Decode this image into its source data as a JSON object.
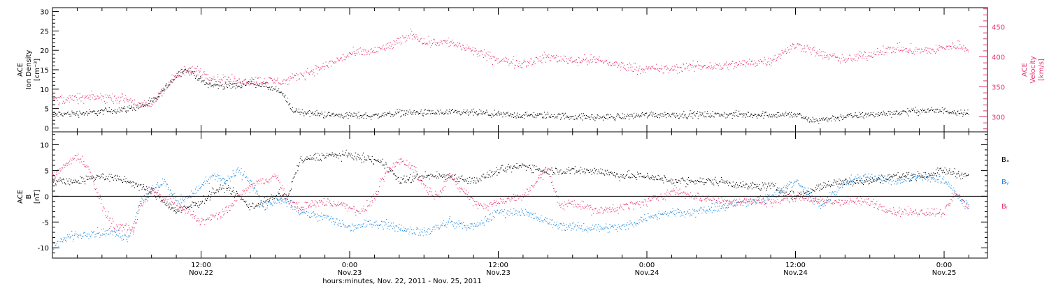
{
  "colors": {
    "ion_density": "#000000",
    "velocity": "#e8336d",
    "bx": "#000000",
    "by": "#1a86e0",
    "bz": "#e8336d"
  },
  "chart_data": [
    {
      "type": "scatter",
      "ylabel_lines": [
        "ACE",
        "Ion Density",
        "[cm⁻³]"
      ],
      "y2label_lines": [
        "ACE",
        "Velocity",
        "[km/s]"
      ],
      "ylim": [
        -1,
        31
      ],
      "y2lim": [
        275,
        482
      ],
      "yticks": [
        "0",
        "5",
        "10",
        "15",
        "20",
        "25",
        "30"
      ],
      "y2ticks": [
        "300",
        "350",
        "400",
        "450"
      ],
      "x_range_hours": [
        0,
        75.5
      ],
      "series": [
        {
          "color": "#000000",
          "axis": "left",
          "keypoints": [
            [
              0,
              3.5
            ],
            [
              3,
              4
            ],
            [
              6,
              5
            ],
            [
              7.5,
              6
            ],
            [
              8.5,
              8
            ],
            [
              9.5,
              12
            ],
            [
              10.5,
              15
            ],
            [
              11.5,
              14
            ],
            [
              12,
              12
            ],
            [
              13,
              11
            ],
            [
              14,
              11
            ],
            [
              15,
              11
            ],
            [
              16,
              12
            ],
            [
              17,
              11
            ],
            [
              18,
              10
            ],
            [
              18.8,
              8
            ],
            [
              19.2,
              5
            ],
            [
              19.6,
              4.5
            ],
            [
              20.5,
              4
            ],
            [
              22,
              3.5
            ],
            [
              24,
              3.3
            ],
            [
              26,
              3.2
            ],
            [
              28,
              4
            ],
            [
              30,
              4
            ],
            [
              32,
              4
            ],
            [
              34,
              4
            ],
            [
              36,
              3.5
            ],
            [
              38,
              3.3
            ],
            [
              40,
              3.3
            ],
            [
              42,
              3
            ],
            [
              44,
              2.8
            ],
            [
              46,
              3
            ],
            [
              48,
              3.5
            ],
            [
              50,
              3.5
            ],
            [
              52,
              3.5
            ],
            [
              54,
              3.5
            ],
            [
              56,
              3.5
            ],
            [
              58,
              3.5
            ],
            [
              60,
              3.5
            ],
            [
              60.5,
              3
            ],
            [
              61,
              2
            ],
            [
              62,
              2.2
            ],
            [
              64,
              3
            ],
            [
              66,
              3.5
            ],
            [
              68,
              4
            ],
            [
              70,
              4.5
            ],
            [
              72,
              4.5
            ],
            [
              74,
              4
            ]
          ],
          "noise": 1.3
        },
        {
          "color": "#e8336d",
          "axis": "right",
          "keypoints": [
            [
              0,
              330
            ],
            [
              1,
              330
            ],
            [
              3,
              333
            ],
            [
              5,
              332
            ],
            [
              6,
              330
            ],
            [
              7,
              320
            ],
            [
              8,
              320
            ],
            [
              8.5,
              335
            ],
            [
              9.5,
              360
            ],
            [
              10.5,
              375
            ],
            [
              11.5,
              380
            ],
            [
              12,
              375
            ],
            [
              13,
              365
            ],
            [
              15,
              360
            ],
            [
              17,
              360
            ],
            [
              18,
              360
            ],
            [
              19,
              360
            ],
            [
              20,
              370
            ],
            [
              22,
              385
            ],
            [
              24,
              405
            ],
            [
              26,
              410
            ],
            [
              28,
              425
            ],
            [
              29,
              440
            ],
            [
              30,
              425
            ],
            [
              32,
              425
            ],
            [
              34,
              410
            ],
            [
              36,
              395
            ],
            [
              38,
              390
            ],
            [
              40,
              400
            ],
            [
              42,
              395
            ],
            [
              44,
              395
            ],
            [
              46,
              385
            ],
            [
              48,
              380
            ],
            [
              50,
              380
            ],
            [
              52,
              385
            ],
            [
              54,
              385
            ],
            [
              56,
              390
            ],
            [
              58,
              395
            ],
            [
              60,
              420
            ],
            [
              61,
              415
            ],
            [
              62,
              405
            ],
            [
              64,
              395
            ],
            [
              66,
              405
            ],
            [
              68,
              415
            ],
            [
              70,
              410
            ],
            [
              72,
              415
            ],
            [
              73,
              420
            ],
            [
              74,
              415
            ]
          ],
          "noise": 12
        }
      ]
    },
    {
      "type": "scatter",
      "ylabel_lines": [
        "ACE",
        "B",
        "[nT]"
      ],
      "ylim": [
        -12,
        12.5
      ],
      "yticks": [
        "-10",
        "-5",
        "0",
        "5",
        "10"
      ],
      "legend": [
        "Bₓ",
        "Bᵧ",
        "Bᵣ"
      ],
      "legend_position": "right",
      "x_range_hours": [
        0,
        75.5
      ],
      "series": [
        {
          "name": "Bx",
          "color": "#000000",
          "keypoints": [
            [
              0,
              3
            ],
            [
              2,
              3
            ],
            [
              4,
              4
            ],
            [
              6,
              3
            ],
            [
              8,
              1
            ],
            [
              9,
              -1
            ],
            [
              10,
              -3
            ],
            [
              11,
              -2
            ],
            [
              12,
              -1
            ],
            [
              13,
              1
            ],
            [
              14,
              2
            ],
            [
              15,
              0
            ],
            [
              16,
              -2
            ],
            [
              17,
              -1
            ],
            [
              18,
              0
            ],
            [
              19,
              0
            ],
            [
              19.5,
              4
            ],
            [
              20,
              7
            ],
            [
              22,
              8
            ],
            [
              24,
              8
            ],
            [
              26,
              7
            ],
            [
              27,
              6
            ],
            [
              28,
              3
            ],
            [
              30,
              4
            ],
            [
              32,
              4
            ],
            [
              34,
              3
            ],
            [
              36,
              5
            ],
            [
              38,
              6
            ],
            [
              40,
              5
            ],
            [
              42,
              5
            ],
            [
              44,
              5
            ],
            [
              46,
              4
            ],
            [
              48,
              4
            ],
            [
              50,
              3
            ],
            [
              52,
              3
            ],
            [
              54,
              3
            ],
            [
              56,
              2
            ],
            [
              58,
              2
            ],
            [
              60,
              0
            ],
            [
              62,
              2
            ],
            [
              64,
              3
            ],
            [
              66,
              3
            ],
            [
              68,
              4
            ],
            [
              70,
              4
            ],
            [
              72,
              5
            ],
            [
              74,
              4
            ]
          ],
          "noise": 1.2
        },
        {
          "name": "By",
          "color": "#1a86e0",
          "keypoints": [
            [
              0,
              -10
            ],
            [
              1,
              -8
            ],
            [
              3,
              -7
            ],
            [
              5,
              -7
            ],
            [
              6,
              -8
            ],
            [
              6.5,
              -6
            ],
            [
              7,
              -1
            ],
            [
              8,
              1
            ],
            [
              9,
              3
            ],
            [
              10,
              -1
            ],
            [
              11,
              0
            ],
            [
              12,
              2
            ],
            [
              13,
              4
            ],
            [
              14,
              3
            ],
            [
              15,
              5
            ],
            [
              16,
              3
            ],
            [
              17,
              -2
            ],
            [
              18,
              -1
            ],
            [
              19,
              -1
            ],
            [
              20,
              -3
            ],
            [
              22,
              -4
            ],
            [
              24,
              -6
            ],
            [
              26,
              -5
            ],
            [
              28,
              -6
            ],
            [
              30,
              -7
            ],
            [
              32,
              -5
            ],
            [
              34,
              -6
            ],
            [
              36,
              -3
            ],
            [
              38,
              -3
            ],
            [
              40,
              -5
            ],
            [
              42,
              -6
            ],
            [
              44,
              -6
            ],
            [
              46,
              -6
            ],
            [
              48,
              -4
            ],
            [
              50,
              -3
            ],
            [
              52,
              -3
            ],
            [
              54,
              -2
            ],
            [
              56,
              -1
            ],
            [
              58,
              0
            ],
            [
              60,
              3
            ],
            [
              62,
              -2
            ],
            [
              64,
              3
            ],
            [
              66,
              4
            ],
            [
              68,
              3
            ],
            [
              70,
              4
            ],
            [
              72,
              3
            ],
            [
              74,
              -2
            ]
          ],
          "noise": 1.3
        },
        {
          "name": "Bz",
          "color": "#e8336d",
          "keypoints": [
            [
              0,
              4
            ],
            [
              1,
              6
            ],
            [
              2,
              8
            ],
            [
              3,
              5
            ],
            [
              4,
              -2
            ],
            [
              5,
              -6
            ],
            [
              6,
              -6
            ],
            [
              6.5,
              -7
            ],
            [
              7,
              -2
            ],
            [
              8,
              1
            ],
            [
              10,
              -2
            ],
            [
              11,
              -3
            ],
            [
              12,
              -5
            ],
            [
              13,
              -4
            ],
            [
              14,
              -3
            ],
            [
              15,
              0
            ],
            [
              16,
              2
            ],
            [
              17,
              3
            ],
            [
              18,
              4
            ],
            [
              19,
              -1
            ],
            [
              20,
              -2
            ],
            [
              22,
              -1
            ],
            [
              24,
              -2
            ],
            [
              25,
              -3
            ],
            [
              26,
              0
            ],
            [
              27,
              5
            ],
            [
              28,
              7
            ],
            [
              29,
              6
            ],
            [
              30,
              2
            ],
            [
              31,
              0
            ],
            [
              32,
              4
            ],
            [
              34,
              -1
            ],
            [
              35,
              -2
            ],
            [
              36,
              -1
            ],
            [
              38,
              0
            ],
            [
              39,
              3
            ],
            [
              40,
              5
            ],
            [
              41,
              -2
            ],
            [
              42,
              -1
            ],
            [
              44,
              -3
            ],
            [
              46,
              -2
            ],
            [
              48,
              -1
            ],
            [
              50,
              1
            ],
            [
              52,
              0
            ],
            [
              54,
              -1
            ],
            [
              56,
              -1
            ],
            [
              58,
              -1
            ],
            [
              60,
              0
            ],
            [
              62,
              -1
            ],
            [
              64,
              -1
            ],
            [
              66,
              -1
            ],
            [
              68,
              -3
            ],
            [
              70,
              -3
            ],
            [
              72,
              -3
            ],
            [
              73,
              1
            ],
            [
              74,
              -3
            ]
          ],
          "noise": 1.3
        }
      ]
    }
  ],
  "x_axis": {
    "tick_labels": [
      {
        "t": "12:00",
        "d": "Nov.22",
        "hour": 12
      },
      {
        "t": "0:00",
        "d": "Nov.23",
        "hour": 24
      },
      {
        "t": "12:00",
        "d": "Nov.23",
        "hour": 36
      },
      {
        "t": "0:00",
        "d": "Nov.24",
        "hour": 48
      },
      {
        "t": "12:00",
        "d": "Nov.24",
        "hour": 60
      },
      {
        "t": "0:00",
        "d": "Nov.25",
        "hour": 72
      }
    ],
    "xlabel": "hours:minutes, Nov. 22, 2011 - Nov. 25, 2011"
  }
}
